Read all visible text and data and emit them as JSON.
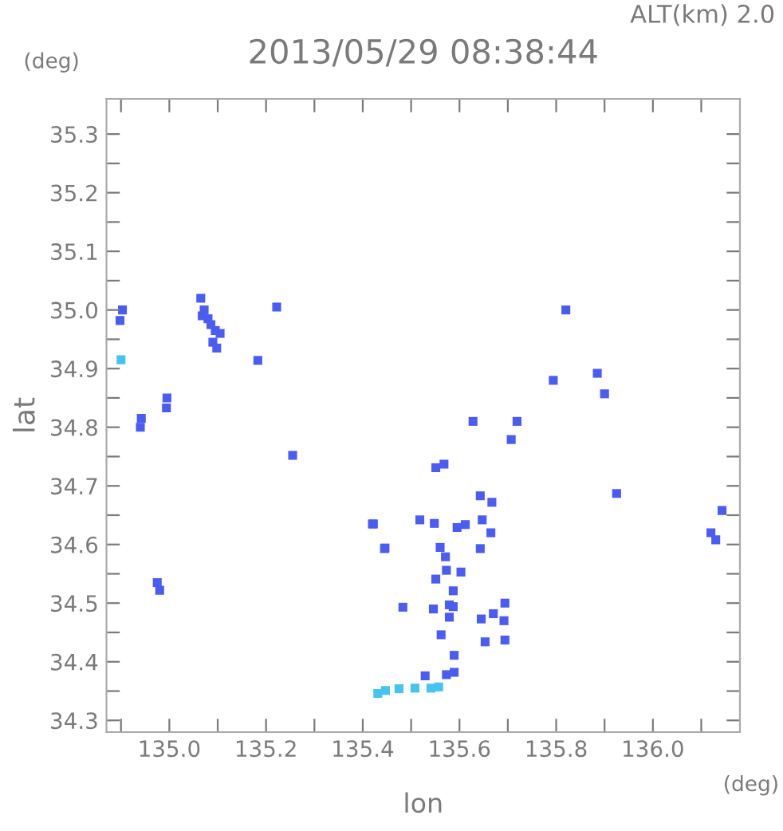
{
  "chart_data": {
    "type": "scatter",
    "title": "2013/05/29 08:38:44",
    "xlabel": "lon",
    "ylabel": "lat",
    "annotations": [
      "ALT(km) 2.0",
      "(deg)",
      "(deg)"
    ],
    "xlim": [
      134.87,
      136.18
    ],
    "ylim": [
      34.28,
      35.36
    ],
    "xticks": [
      {
        "value": 134.9,
        "label": null
      },
      {
        "value": 135.0,
        "label": "135.0"
      },
      {
        "value": 135.1,
        "label": null
      },
      {
        "value": 135.2,
        "label": "135.2"
      },
      {
        "value": 135.3,
        "label": null
      },
      {
        "value": 135.4,
        "label": "135.4"
      },
      {
        "value": 135.5,
        "label": null
      },
      {
        "value": 135.6,
        "label": "135.6"
      },
      {
        "value": 135.7,
        "label": null
      },
      {
        "value": 135.8,
        "label": "135.8"
      },
      {
        "value": 135.9,
        "label": null
      },
      {
        "value": 136.0,
        "label": "136.0"
      },
      {
        "value": 136.1,
        "label": null
      }
    ],
    "yticks": [
      {
        "value": 34.3,
        "label": "34.3"
      },
      {
        "value": 34.35,
        "label": null
      },
      {
        "value": 34.4,
        "label": "34.4"
      },
      {
        "value": 34.45,
        "label": null
      },
      {
        "value": 34.5,
        "label": "34.5"
      },
      {
        "value": 34.55,
        "label": null
      },
      {
        "value": 34.6,
        "label": "34.6"
      },
      {
        "value": 34.65,
        "label": null
      },
      {
        "value": 34.7,
        "label": "34.7"
      },
      {
        "value": 34.75,
        "label": null
      },
      {
        "value": 34.8,
        "label": "34.8"
      },
      {
        "value": 34.85,
        "label": null
      },
      {
        "value": 34.9,
        "label": "34.9"
      },
      {
        "value": 34.95,
        "label": null
      },
      {
        "value": 35.0,
        "label": "35.0"
      },
      {
        "value": 35.05,
        "label": null
      },
      {
        "value": 35.1,
        "label": "35.1"
      },
      {
        "value": 35.15,
        "label": null
      },
      {
        "value": 35.2,
        "label": "35.2"
      },
      {
        "value": 35.25,
        "label": null
      },
      {
        "value": 35.3,
        "label": "35.3"
      }
    ],
    "grid": false,
    "legend": false,
    "marker": "square",
    "series": [
      {
        "color": "#4a5cf2",
        "x": [
          134.903,
          134.898,
          135.065,
          135.072,
          135.08,
          135.068,
          135.086,
          135.095,
          135.105,
          135.09,
          135.098,
          134.995,
          134.994,
          134.942,
          134.94,
          135.222,
          135.183,
          135.255,
          135.42,
          135.446,
          134.975,
          134.98,
          136.12,
          136.13,
          136.143,
          135.925,
          135.628,
          135.719,
          135.707,
          135.551,
          135.568,
          135.422,
          135.518,
          135.548,
          135.612,
          135.595,
          135.647,
          135.667,
          135.643,
          135.665,
          135.643,
          135.445,
          135.56,
          135.571,
          135.573,
          135.603,
          135.551,
          135.587,
          135.579,
          135.587,
          135.546,
          135.579,
          135.483,
          135.645,
          135.67,
          135.694,
          135.692,
          135.653,
          135.694,
          135.562,
          135.589,
          135.529,
          135.573,
          135.589,
          135.82,
          135.885,
          135.9,
          135.794
        ],
        "values": [
          35.0,
          34.982,
          35.02,
          35.0,
          34.985,
          34.99,
          34.975,
          34.965,
          34.96,
          34.945,
          34.935,
          34.85,
          34.833,
          34.815,
          34.8,
          35.005,
          34.914,
          34.752,
          34.635,
          34.594,
          34.535,
          34.522,
          34.62,
          34.608,
          34.658,
          34.687,
          34.81,
          34.81,
          34.779,
          34.731,
          34.737,
          34.635,
          34.642,
          34.636,
          34.634,
          34.629,
          34.642,
          34.672,
          34.683,
          34.62,
          34.593,
          34.593,
          34.595,
          34.579,
          34.556,
          34.553,
          34.541,
          34.521,
          34.497,
          34.494,
          34.49,
          34.476,
          34.493,
          34.473,
          34.482,
          34.5,
          34.47,
          34.434,
          34.437,
          34.446,
          34.411,
          34.376,
          34.378,
          34.382,
          35.0,
          34.892,
          34.857,
          34.88
        ]
      },
      {
        "color": "#45c4f2",
        "x": [
          134.9,
          135.431,
          135.447,
          135.475,
          135.508,
          135.541,
          135.557
        ],
        "values": [
          34.915,
          34.346,
          34.351,
          34.354,
          34.355,
          34.355,
          34.357
        ]
      }
    ]
  }
}
